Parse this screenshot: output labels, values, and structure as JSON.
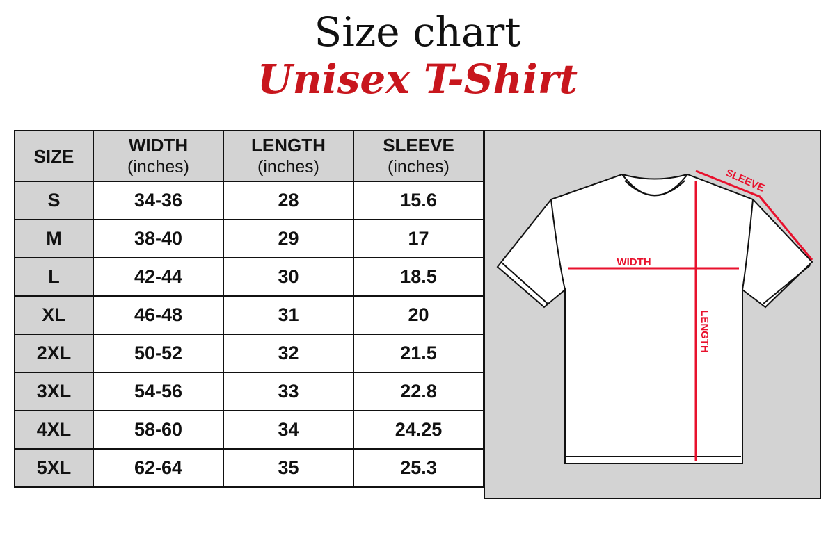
{
  "title": "Size chart",
  "subtitle": "Unisex T-Shirt",
  "headers": [
    {
      "label": "SIZE"
    },
    {
      "label": "WIDTH",
      "unit": "(inches)"
    },
    {
      "label": "LENGTH",
      "unit": "(inches)"
    },
    {
      "label": "SLEEVE",
      "unit": "(inches)"
    }
  ],
  "rows": [
    [
      "S",
      "34-36",
      "28",
      "15.6"
    ],
    [
      "M",
      "38-40",
      "29",
      "17"
    ],
    [
      "L",
      "42-44",
      "30",
      "18.5"
    ],
    [
      "XL",
      "46-48",
      "31",
      "20"
    ],
    [
      "2XL",
      "50-52",
      "32",
      "21.5"
    ],
    [
      "3XL",
      "54-56",
      "33",
      "22.8"
    ],
    [
      "4XL",
      "58-60",
      "34",
      "24.25"
    ],
    [
      "5XL",
      "62-64",
      "35",
      "25.3"
    ]
  ],
  "diagram": {
    "width_label": "WIDTH",
    "length_label": "LENGTH",
    "sleeve_label": "SLEEVE",
    "accent": "#e8112d"
  },
  "colors": {
    "title_red": "#c8161d",
    "header_gray": "#d3d3d3"
  }
}
